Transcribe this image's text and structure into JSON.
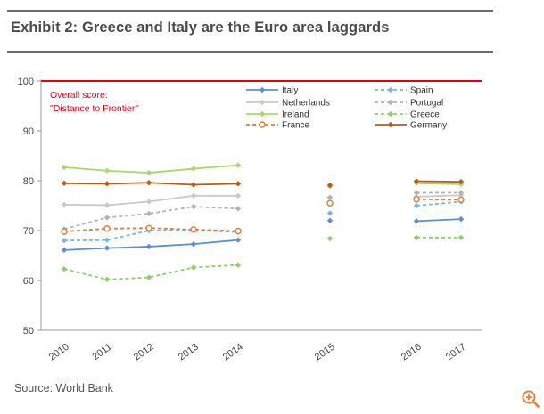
{
  "header": {
    "title": "Exhibit 2: Greece and Italy are the Euro area laggards"
  },
  "footer": {
    "source": "Source: World Bank"
  },
  "controls": {
    "zoom_icon": "zoom-in-icon"
  },
  "colors": {
    "accent_line": "#e2001a",
    "zoom": "#e8803a"
  },
  "chart_data": {
    "type": "line",
    "categories": [
      "2010",
      "2011",
      "2012",
      "2013",
      "2014",
      "2015",
      "2016",
      "2017"
    ],
    "ylim": [
      50,
      100
    ],
    "yticks": [
      50,
      60,
      70,
      80,
      90,
      100
    ],
    "reference_line": 100,
    "annotation": [
      "Overall score:",
      "\"Distance to Frontier\""
    ],
    "legend_position": "top-right",
    "series": [
      {
        "name": "Italy",
        "color": "#5b8fd0",
        "dashed": false,
        "marker": "diamond",
        "values": [
          66.1,
          66.5,
          66.8,
          67.3,
          68.1,
          72.0,
          71.9,
          72.3
        ]
      },
      {
        "name": "Spain",
        "color": "#7fb2e5",
        "dashed": true,
        "marker": "diamond",
        "values": [
          68.0,
          68.1,
          70.0,
          70.1,
          69.7,
          73.5,
          75.0,
          75.8
        ]
      },
      {
        "name": "Netherlands",
        "color": "#c9c9c9",
        "dashed": false,
        "marker": "diamond",
        "values": [
          75.2,
          75.1,
          75.8,
          77.0,
          77.0,
          76.7,
          76.8,
          77.1
        ]
      },
      {
        "name": "Portugal",
        "color": "#b3b3b3",
        "dashed": true,
        "marker": "diamond",
        "values": [
          70.3,
          72.6,
          73.4,
          74.8,
          74.4,
          76.6,
          77.6,
          77.6
        ]
      },
      {
        "name": "Ireland",
        "color": "#a6d96a",
        "dashed": false,
        "marker": "diamond",
        "values": [
          82.7,
          82.0,
          81.6,
          82.4,
          83.1,
          78.9,
          79.5,
          79.3
        ]
      },
      {
        "name": "Greece",
        "color": "#8fce6a",
        "dashed": true,
        "marker": "diamond",
        "values": [
          62.3,
          60.2,
          60.6,
          62.6,
          63.1,
          68.4,
          68.6,
          68.6
        ]
      },
      {
        "name": "France",
        "color": "#e07b39",
        "dashed": true,
        "marker": "circle",
        "values": [
          69.8,
          70.4,
          70.5,
          70.2,
          69.9,
          75.5,
          76.3,
          76.2
        ]
      },
      {
        "name": "Germany",
        "color": "#c0590e",
        "dashed": false,
        "marker": "diamond",
        "values": [
          79.5,
          79.4,
          79.6,
          79.2,
          79.4,
          79.1,
          79.9,
          79.8
        ]
      }
    ]
  }
}
